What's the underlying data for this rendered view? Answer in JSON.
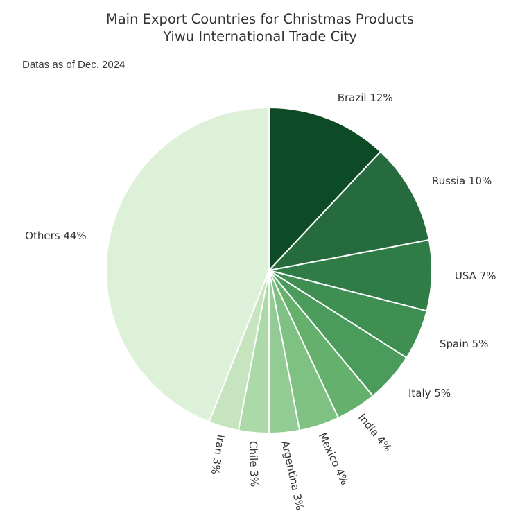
{
  "header": {
    "title_line1": "Main Export Countries for Christmas Products",
    "title_line2": "Yiwu International Trade City",
    "subtitle": "Datas as of Dec. 2024"
  },
  "chart_data": {
    "type": "pie",
    "title": "Main Export Countries for Christmas Products",
    "subtitle_line": "Yiwu International Trade City",
    "note": "Datas as of Dec. 2024",
    "labels": [
      "Brazil",
      "Russia",
      "USA",
      "Spain",
      "Italy",
      "India",
      "Mexico",
      "Argentina",
      "Chile",
      "Iran",
      "Others"
    ],
    "values": [
      12,
      10,
      7,
      5,
      5,
      4,
      4,
      3,
      3,
      3,
      44
    ],
    "display_labels": [
      "Brazil 12%",
      "Russia 10%",
      "USA 7%",
      "Spain 5%",
      "Italy 5%",
      "India 4%",
      "Mexico 4%",
      "Argentina 3%",
      "Chile 3%",
      "Iran 3%",
      "Others 44%"
    ],
    "colors": [
      "#0d4a26",
      "#256b3e",
      "#2f7c47",
      "#3f8e52",
      "#4b9c5c",
      "#66b06e",
      "#7fc183",
      "#92cb93",
      "#abd9a7",
      "#c6e5bf",
      "#ddf0d8"
    ],
    "slice_border_color": "#ffffff",
    "text_color": "#333333",
    "start_angle": "top",
    "direction": "clockwise",
    "legend": "none",
    "rotated_label_indices": [
      5,
      6,
      7,
      8,
      9
    ]
  }
}
